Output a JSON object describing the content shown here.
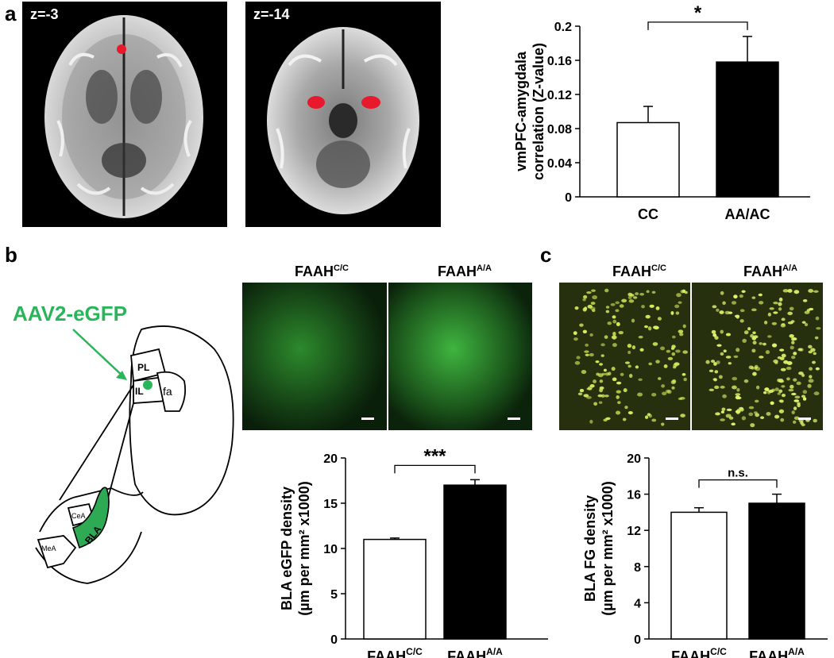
{
  "panels": {
    "a": "a",
    "b": "b",
    "c": "c"
  },
  "scans": [
    {
      "label": "z=-3"
    },
    {
      "label": "z=-14"
    }
  ],
  "diagram": {
    "virus_label": "AAV2-eGFP",
    "regions": {
      "pl": "PL",
      "il": "IL",
      "fa": "fa",
      "cea": "CeA",
      "bla": "BLA",
      "mea": "MeA"
    },
    "colors": {
      "green": "#2bb55a",
      "bla_fill": "#2eaa55"
    }
  },
  "micrographs_b": {
    "titles": [
      {
        "base": "FAAH",
        "sup": "C/C"
      },
      {
        "base": "FAAH",
        "sup": "A/A"
      }
    ]
  },
  "micrographs_c": {
    "titles": [
      {
        "base": "FAAH",
        "sup": "C/C"
      },
      {
        "base": "FAAH",
        "sup": "A/A"
      }
    ]
  },
  "chart_data": [
    {
      "type": "bar",
      "panel": "a",
      "categories": [
        "CC",
        "AA/AC"
      ],
      "values": [
        0.087,
        0.158
      ],
      "errors": [
        0.019,
        0.03
      ],
      "colors": [
        "#ffffff",
        "#000000"
      ],
      "ylim": [
        0,
        0.2
      ],
      "yticks": [
        "0",
        "0.04",
        "0.08",
        "0.12",
        "0.16",
        "0.2"
      ],
      "ylabel_lines": [
        "vmPFC-amygdala",
        "correlation  (Z-value)"
      ],
      "xlabel": "",
      "significance": "*"
    },
    {
      "type": "bar",
      "panel": "b",
      "categories": [
        {
          "base": "FAAH",
          "sup": "C/C"
        },
        {
          "base": "FAAH",
          "sup": "A/A"
        }
      ],
      "values": [
        11.0,
        17.0
      ],
      "errors": [
        0.15,
        0.6
      ],
      "colors": [
        "#ffffff",
        "#000000"
      ],
      "ylim": [
        0,
        20
      ],
      "yticks": [
        "0",
        "5",
        "10",
        "15",
        "20"
      ],
      "ylabel_lines": [
        "BLA eGFP density",
        "(µm per mm² x1000)"
      ],
      "xlabel": "",
      "significance": "***"
    },
    {
      "type": "bar",
      "panel": "c",
      "categories": [
        {
          "base": "FAAH",
          "sup": "C/C"
        },
        {
          "base": "FAAH",
          "sup": "A/A"
        }
      ],
      "values": [
        14.0,
        15.0
      ],
      "errors": [
        0.5,
        1.0
      ],
      "colors": [
        "#ffffff",
        "#000000"
      ],
      "ylim": [
        0,
        20
      ],
      "yticks": [
        "0",
        "4",
        "8",
        "12",
        "16",
        "20"
      ],
      "ylabel_lines": [
        "BLA  FG density",
        "(µm per mm² x1000)"
      ],
      "xlabel": "",
      "significance": "n.s."
    }
  ]
}
